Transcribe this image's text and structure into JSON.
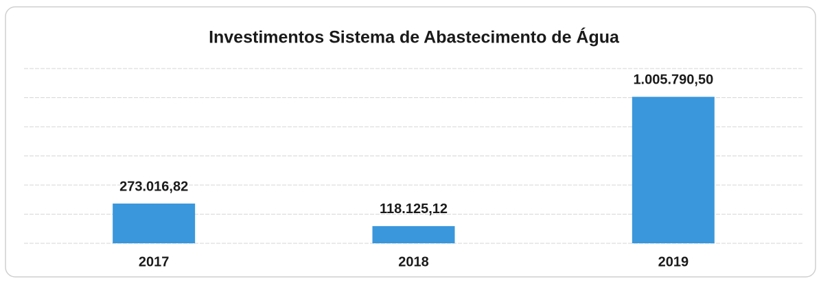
{
  "chart_data": {
    "type": "bar",
    "title": "Investimentos Sistema de Abastecimento de Água",
    "categories": [
      "2017",
      "2018",
      "2019"
    ],
    "values": [
      273016.82,
      118125.12,
      1005790.5
    ],
    "value_labels": [
      "273.016,82",
      "118.125,12",
      "1.005.790,50"
    ],
    "color": "#3a97dc",
    "ylim": [
      0,
      1200000
    ],
    "yticks": [
      0,
      200000,
      400000,
      600000,
      800000,
      1000000,
      1200000
    ],
    "grid": true
  }
}
